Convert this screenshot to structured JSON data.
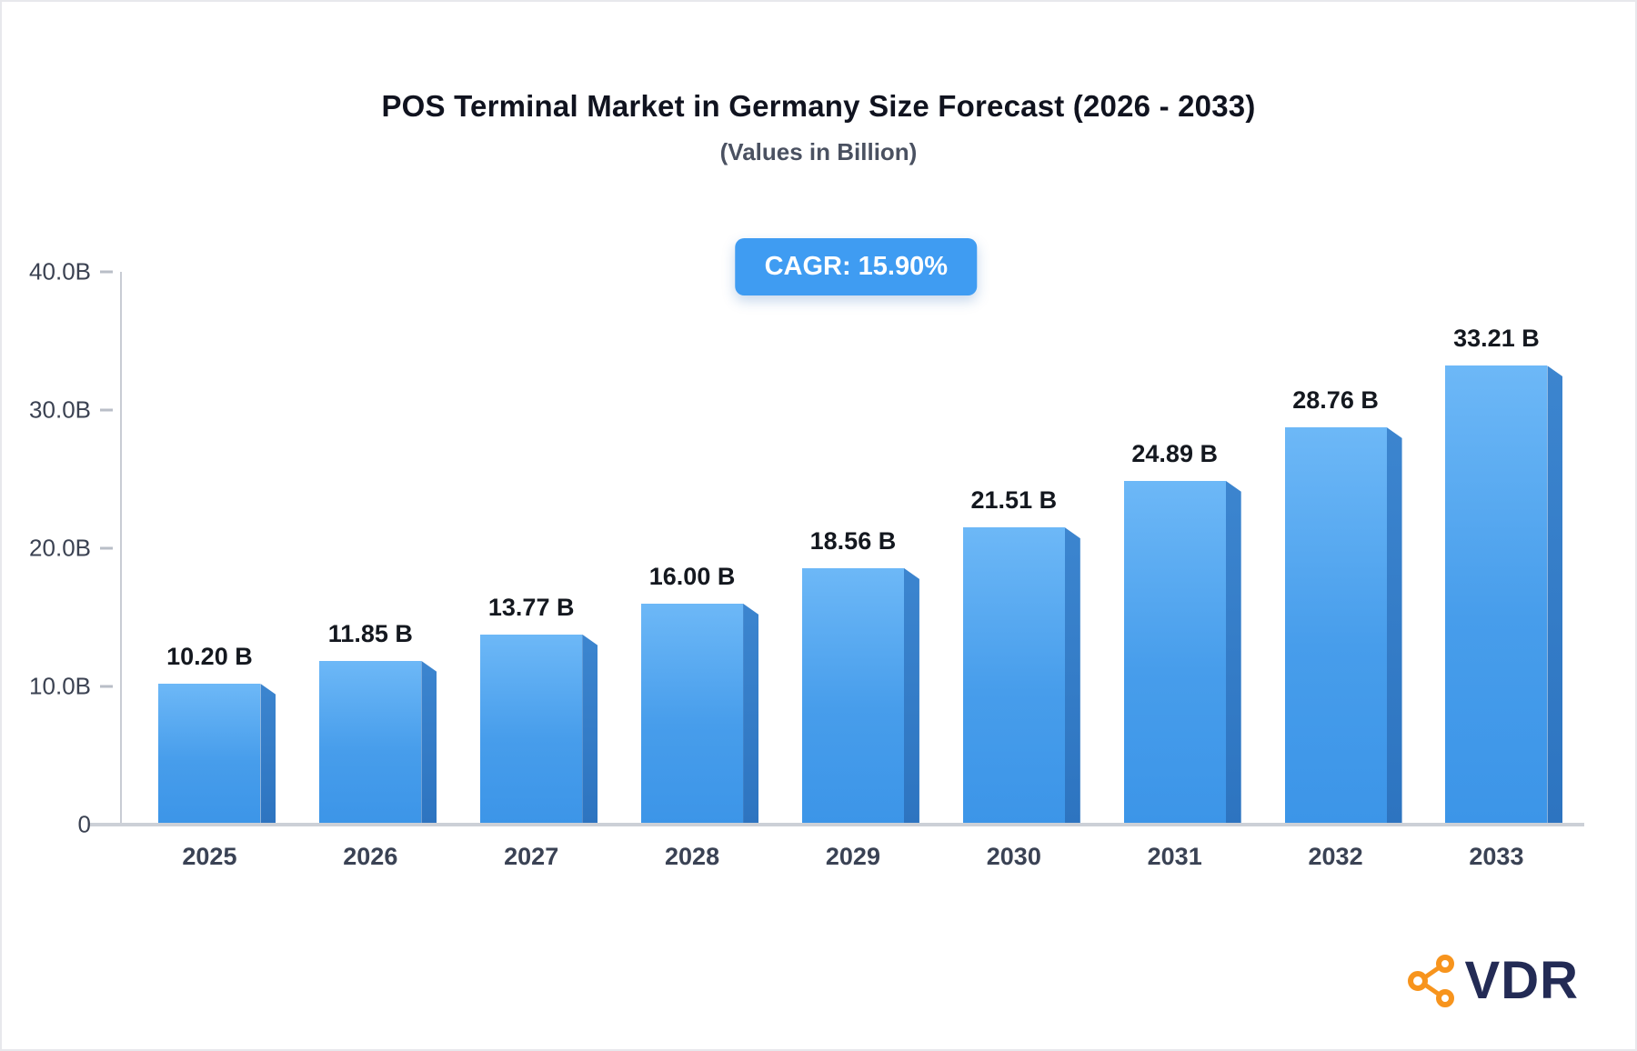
{
  "header": {
    "title": "POS Terminal Market in Germany Size Forecast (2026 - 2033)",
    "subtitle": "(Values in Billion)",
    "badge_label": "CAGR: 15.90%"
  },
  "logo": {
    "text": "VDR",
    "icon": "network-nodes-icon",
    "icon_color": "#f7941d",
    "text_color": "#232b55"
  },
  "colors": {
    "bar_face_top": "#6db8f7",
    "bar_face_bottom": "#3c95e8",
    "bar_side": "#2d74c0",
    "badge_bg": "#3f9cf2",
    "axis_line": "#c8ccd4"
  },
  "chart_data": {
    "type": "bar",
    "title": "POS Terminal Market in Germany Size Forecast (2026 - 2033)",
    "subtitle": "(Values in Billion)",
    "annotation": "CAGR: 15.90%",
    "categories": [
      "2025",
      "2026",
      "2027",
      "2028",
      "2029",
      "2030",
      "2031",
      "2032",
      "2033"
    ],
    "values": [
      10.2,
      11.85,
      13.77,
      16.0,
      18.56,
      21.51,
      24.89,
      28.76,
      33.21
    ],
    "value_labels": [
      "10.20 B",
      "11.85 B",
      "13.77 B",
      "16.00 B",
      "18.56 B",
      "21.51 B",
      "24.89 B",
      "28.76 B",
      "33.21 B"
    ],
    "xlabel": "",
    "ylabel": "",
    "ylim": [
      0,
      40
    ],
    "yticks": [
      {
        "value": 0,
        "label": "0"
      },
      {
        "value": 10,
        "label": "10.0B"
      },
      {
        "value": 20,
        "label": "20.0B"
      },
      {
        "value": 30,
        "label": "30.0B"
      },
      {
        "value": 40,
        "label": "40.0B"
      }
    ],
    "grid": false,
    "legend": false,
    "unit": "Billion"
  }
}
